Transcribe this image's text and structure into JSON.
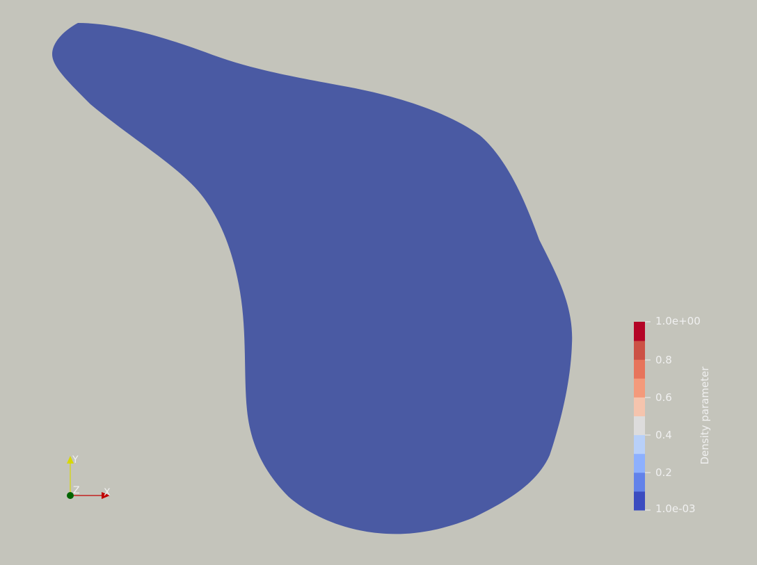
{
  "viewport": {
    "background_color": "#c4c4bb"
  },
  "mesh": {
    "color": "#4a5aa3",
    "density_value": 0.001
  },
  "colorbar": {
    "title": "Density parameter",
    "min_label": "1.0e-03",
    "max_label": "1.0e+00",
    "tick_labels": [
      "0.2",
      "0.4",
      "0.6",
      "0.8"
    ],
    "colors": [
      "#3b4cc0",
      "#6282ea",
      "#8db0fe",
      "#b8d0f9",
      "#dddcdc",
      "#f5c4ad",
      "#f49a7b",
      "#e7745b",
      "#cc5145",
      "#b40426"
    ],
    "label_color": "#f0f0f0"
  },
  "orientation_axes": {
    "x_label": "X",
    "y_label": "Y",
    "z_label": "Z",
    "x_color": "#c00000",
    "y_color": "#d8d800",
    "z_color": "#006400"
  }
}
